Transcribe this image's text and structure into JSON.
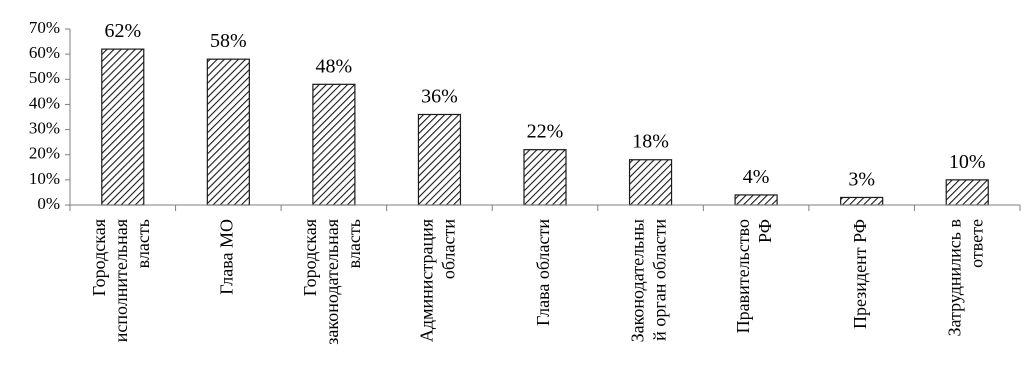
{
  "chart_data": {
    "type": "bar",
    "title": "",
    "xlabel": "",
    "ylabel": "",
    "ylim": [
      0,
      70
    ],
    "yticks": [
      0,
      10,
      20,
      30,
      40,
      50,
      60,
      70
    ],
    "ytick_labels": [
      "0%",
      "10%",
      "20%",
      "30%",
      "40%",
      "50%",
      "60%",
      "70%"
    ],
    "grid": false,
    "legend": "none",
    "bar_fill": "hatched",
    "bar_color": "#1a1a1a",
    "categories": [
      [
        "Городская",
        "исполнительная",
        "власть"
      ],
      [
        "Глава МО"
      ],
      [
        "Городская",
        "законодательная",
        "власть"
      ],
      [
        "Администрация",
        "области"
      ],
      [
        "Глава области"
      ],
      [
        "Законодательны",
        "й орган области"
      ],
      [
        "Правительство",
        "РФ"
      ],
      [
        "Президент РФ"
      ],
      [
        "Затруднились в",
        "ответе"
      ]
    ],
    "values": [
      62,
      58,
      48,
      36,
      22,
      18,
      4,
      3,
      10
    ],
    "data_labels": [
      "62%",
      "58%",
      "48%",
      "36%",
      "22%",
      "18%",
      "4%",
      "3%",
      "10%"
    ]
  }
}
